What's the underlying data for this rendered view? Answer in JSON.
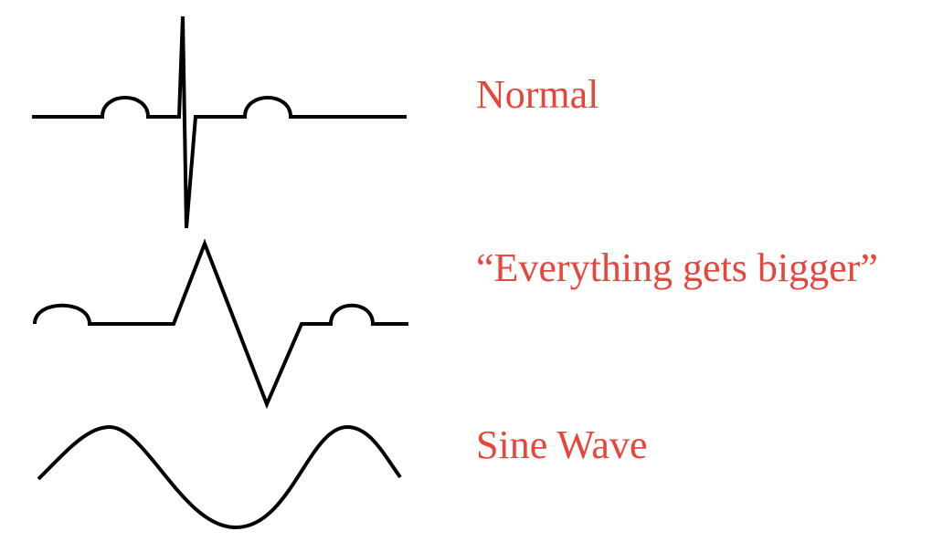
{
  "labels": {
    "normal": "Normal",
    "bigger": "“Everything gets bigger”",
    "sine": "Sine Wave"
  },
  "colors": {
    "label": "#e8453c",
    "trace": "#000000"
  }
}
